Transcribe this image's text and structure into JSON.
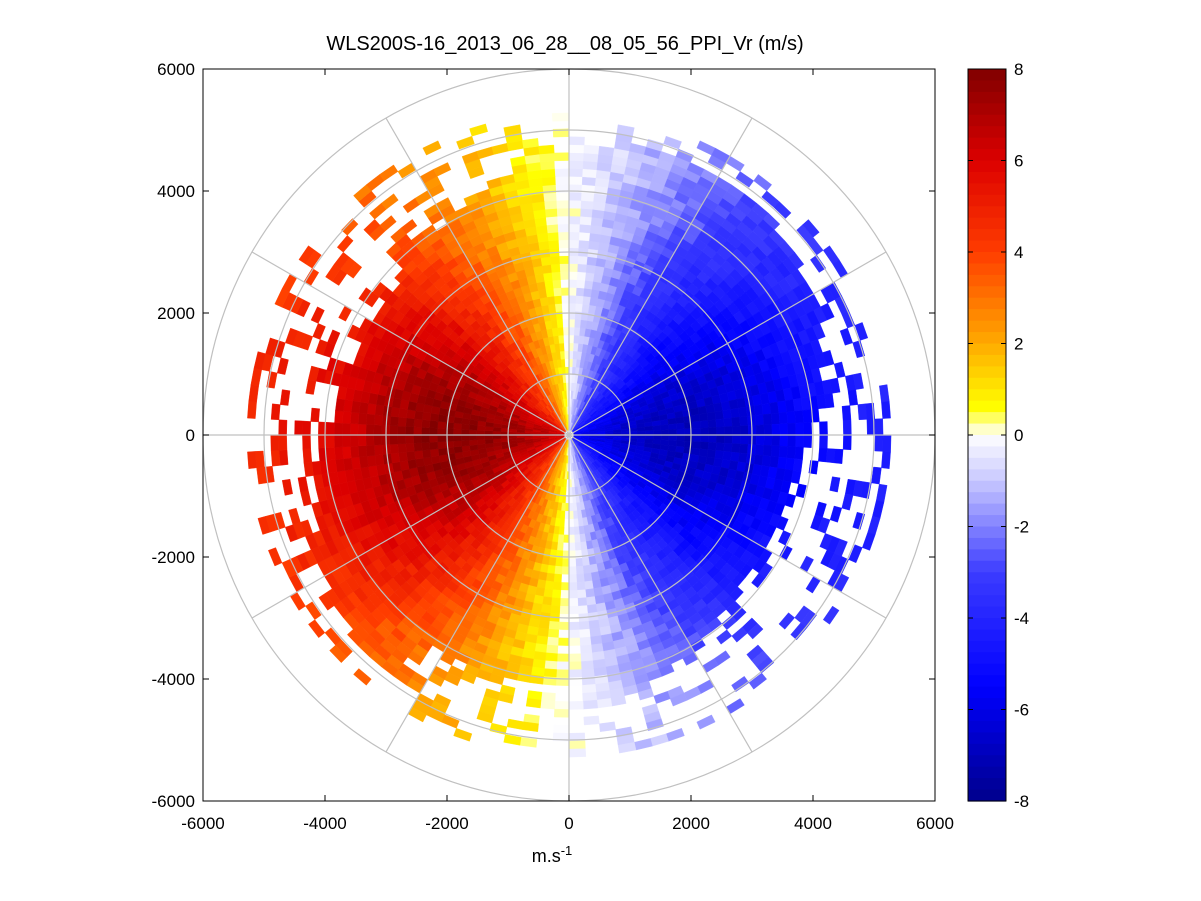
{
  "chart_data": {
    "type": "heatmap",
    "subtype": "polar-ppi-scan",
    "title": "WLS200S-16_2013_06_28__08_05_56_PPI_Vr (m/s)",
    "xlabel": "m.s",
    "xlabel_superscript": "-1",
    "ylabel": "",
    "xlim": [
      -6000,
      6000
    ],
    "ylim": [
      -6000,
      6000
    ],
    "x_ticks": [
      -6000,
      -4000,
      -2000,
      0,
      2000,
      4000,
      6000
    ],
    "x_tick_labels": [
      "-6000",
      "-4000",
      "-2000",
      "0",
      "2000",
      "4000",
      "6000"
    ],
    "y_ticks": [
      6000,
      4000,
      2000,
      0,
      -2000,
      -4000,
      -6000
    ],
    "y_tick_labels": [
      "6000",
      "4000",
      "2000",
      "0",
      "-2000",
      "-4000",
      "-6000"
    ],
    "range_rings_m": [
      1000,
      2000,
      3000,
      4000,
      5000,
      6000
    ],
    "spoke_angles_deg": [
      0,
      30,
      60,
      90,
      120,
      150,
      180,
      210,
      240,
      270,
      300,
      330
    ],
    "data_max_range_m": 5200,
    "velocity_model": {
      "description": "radial velocity field, positive (toward red) on west half, negative (toward blue) on east half",
      "peak_positive_ms": 7.8,
      "peak_negative_ms": -7.0,
      "zero_crossing_bearing_deg": 0,
      "blind_sector_north_deg": [
        -1,
        1
      ]
    },
    "colorbar": {
      "label": "",
      "min": -8,
      "max": 8,
      "ticks": [
        8,
        6,
        4,
        2,
        0,
        -2,
        -4,
        -6,
        -8
      ],
      "tick_labels": [
        "8",
        "6",
        "4",
        "2",
        "0",
        "-2",
        "-4",
        "-6",
        "-8"
      ],
      "colormap": "blue-white-yellow-red",
      "colors": {
        "neg_max": "#00008C",
        "neg_mid": "#0000FF",
        "neg_low": "#5A5AFF",
        "zero": "#FFFFFF",
        "pos_low": "#FFFF00",
        "pos_mid": "#FF9900",
        "pos_high": "#FF0000",
        "pos_max": "#800000"
      }
    }
  }
}
